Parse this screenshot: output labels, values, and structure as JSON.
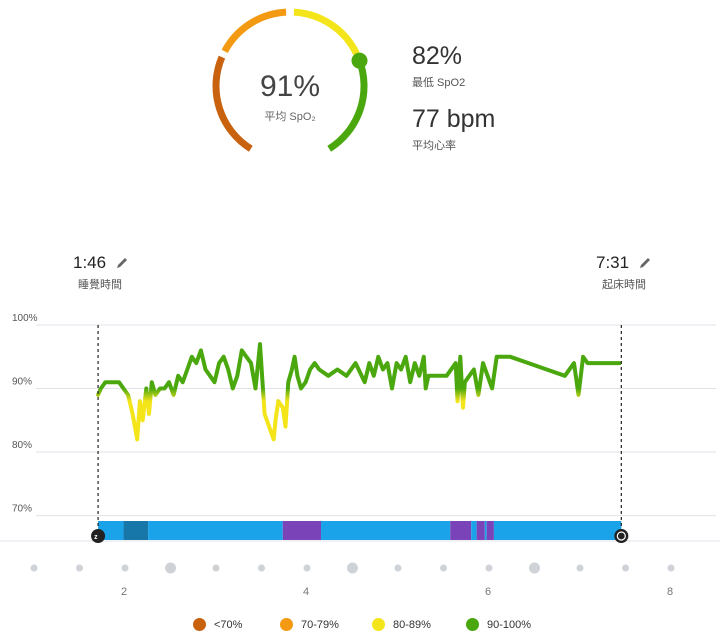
{
  "summary": {
    "avg_spo2_value": "91%",
    "avg_spo2_label": "平均 SpO₂",
    "gauge_level_percent": 91,
    "min_spo2_value": "82%",
    "min_spo2_label": "最低 SpO2",
    "avg_hr_value": "77 bpm",
    "avg_hr_label": "平均心率"
  },
  "sleep": {
    "start_time": "1:46",
    "start_label": "睡覺時間",
    "end_time": "7:31",
    "end_label": "起床時間"
  },
  "colors": {
    "lt70": "#c8620f",
    "r70_79": "#f39a12",
    "r80_89": "#f4e51a",
    "r90_100": "#4aa80e",
    "sleep_band": "#1aa3e8",
    "deep": "#1677a8",
    "awake": "#7a44b8"
  },
  "legend": [
    {
      "label": "<70%",
      "color": "#c8620f"
    },
    {
      "label": "70-79%",
      "color": "#f39a12"
    },
    {
      "label": "80-89%",
      "color": "#f4e51a"
    },
    {
      "label": "90-100%",
      "color": "#4aa80e"
    }
  ],
  "chart_data": {
    "type": "line",
    "y_ticks": [
      "100%",
      "90%",
      "80%",
      "70%"
    ],
    "x_ticks": [
      "2",
      "4",
      "6",
      "8"
    ],
    "ylim": [
      66,
      100
    ],
    "xlim": [
      1.0,
      8.0
    ],
    "series": [
      {
        "x": [
          1.77,
          1.8,
          1.85,
          1.9,
          2.0,
          2.05,
          2.1,
          2.15,
          2.2,
          2.23,
          2.26,
          2.3,
          2.33,
          2.36,
          2.4,
          2.45,
          2.5,
          2.55,
          2.6,
          2.65,
          2.7,
          2.75,
          2.8,
          2.85,
          2.9,
          2.95,
          3.0,
          3.05,
          3.1,
          3.15,
          3.2,
          3.25,
          3.3,
          3.35,
          3.4,
          3.45,
          3.5,
          3.55,
          3.6,
          3.65,
          3.7,
          3.72,
          3.75,
          3.8,
          3.83,
          3.86,
          3.9,
          3.93,
          3.96,
          4.0,
          4.05,
          4.1,
          4.15,
          4.2,
          4.3,
          4.4,
          4.5,
          4.6,
          4.7,
          4.75,
          4.8,
          4.85,
          4.9,
          4.95,
          5.0,
          5.05,
          5.1,
          5.15,
          5.2,
          5.25,
          5.3,
          5.35,
          5.37,
          5.4,
          5.5,
          5.6,
          5.7,
          5.72,
          5.75,
          5.78,
          5.8,
          5.85,
          5.9,
          5.95,
          6.0,
          6.05,
          6.1,
          6.15,
          6.2,
          6.3,
          6.5,
          6.7,
          6.9,
          7.0,
          7.05,
          7.1,
          7.15,
          7.3,
          7.5
        ],
        "y": [
          89,
          90,
          91,
          91,
          91,
          90,
          89,
          86,
          82,
          88,
          85,
          90,
          86,
          91,
          89,
          90,
          90,
          91,
          89,
          92,
          91,
          93,
          95,
          94,
          96,
          93,
          92,
          91,
          94,
          95,
          93,
          90,
          92,
          96,
          95,
          94,
          90,
          97,
          86,
          84,
          82,
          85,
          88,
          87,
          84,
          91,
          93,
          95,
          92,
          90,
          91,
          93,
          94,
          93,
          92,
          93,
          92,
          94,
          91,
          94,
          92,
          95,
          93,
          94,
          90,
          94,
          93,
          95,
          91,
          94,
          92,
          95,
          90,
          92,
          92,
          92,
          94,
          88,
          95,
          87,
          91,
          92,
          93,
          89,
          94,
          92,
          90,
          95,
          95,
          95,
          94,
          93,
          92,
          94,
          89,
          95,
          94,
          94,
          94
        ]
      }
    ],
    "stage_bands": [
      {
        "from": 1.77,
        "to": 2.05,
        "stage": "light"
      },
      {
        "from": 2.05,
        "to": 2.32,
        "stage": "deep"
      },
      {
        "from": 2.32,
        "to": 3.8,
        "stage": "light"
      },
      {
        "from": 3.8,
        "to": 4.22,
        "stage": "awake"
      },
      {
        "from": 4.22,
        "to": 5.64,
        "stage": "light"
      },
      {
        "from": 5.64,
        "to": 5.87,
        "stage": "awake"
      },
      {
        "from": 5.87,
        "to": 5.93,
        "stage": "light"
      },
      {
        "from": 5.93,
        "to": 6.02,
        "stage": "awake"
      },
      {
        "from": 6.02,
        "to": 6.04,
        "stage": "light"
      },
      {
        "from": 6.04,
        "to": 6.12,
        "stage": "awake"
      },
      {
        "from": 6.12,
        "to": 7.52,
        "stage": "light"
      }
    ],
    "grid": true
  }
}
